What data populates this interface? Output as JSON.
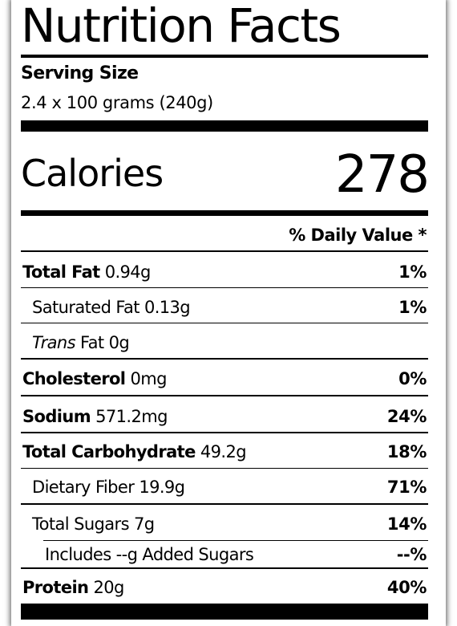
{
  "title": "Nutrition Facts",
  "serving": {
    "label": "Serving Size",
    "value": "2.4 x 100 grams (240g)"
  },
  "calories": {
    "label": "Calories",
    "value": "278"
  },
  "daily_value_header": "% Daily Value *",
  "nutrients": {
    "total_fat": {
      "name": "Total Fat",
      "amount": "0.94g",
      "dv": "1%"
    },
    "sat_fat": {
      "name": "Saturated Fat",
      "amount": "0.13g",
      "dv": "1%"
    },
    "trans_fat": {
      "name_italic": "Trans",
      "name_rest": "Fat",
      "amount": "0g",
      "dv": ""
    },
    "cholesterol": {
      "name": "Cholesterol",
      "amount": "0mg",
      "dv": "0%"
    },
    "sodium": {
      "name": "Sodium",
      "amount": "571.2mg",
      "dv": "24%"
    },
    "total_carb": {
      "name": "Total Carbohydrate",
      "amount": "49.2g",
      "dv": "18%"
    },
    "fiber": {
      "name": "Dietary Fiber",
      "amount": "19.9g",
      "dv": "71%"
    },
    "sugars": {
      "name": "Total Sugars",
      "amount": "7g",
      "dv": "14%"
    },
    "added_sugars": {
      "name": "Includes --g Added Sugars",
      "dv": "--%"
    },
    "protein": {
      "name": "Protein",
      "amount": "20g",
      "dv": "40%"
    }
  }
}
